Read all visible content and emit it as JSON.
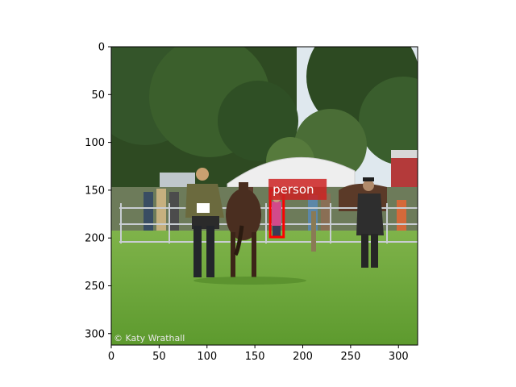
{
  "image": {
    "watermark": "© Katy Wrathall"
  },
  "axes": {
    "x_ticks": [
      "0",
      "50",
      "100",
      "150",
      "200",
      "250",
      "300"
    ],
    "y_ticks": [
      "0",
      "50",
      "100",
      "150",
      "200",
      "250",
      "300"
    ],
    "xlim": [
      0,
      320
    ],
    "ylim": [
      0,
      312
    ]
  },
  "detection": {
    "label": "person",
    "box_color": "#ff0000",
    "label_bg": "#cc2222",
    "box_image_coords": {
      "x0": 166,
      "y0": 150,
      "x1": 180,
      "y1": 199
    }
  }
}
